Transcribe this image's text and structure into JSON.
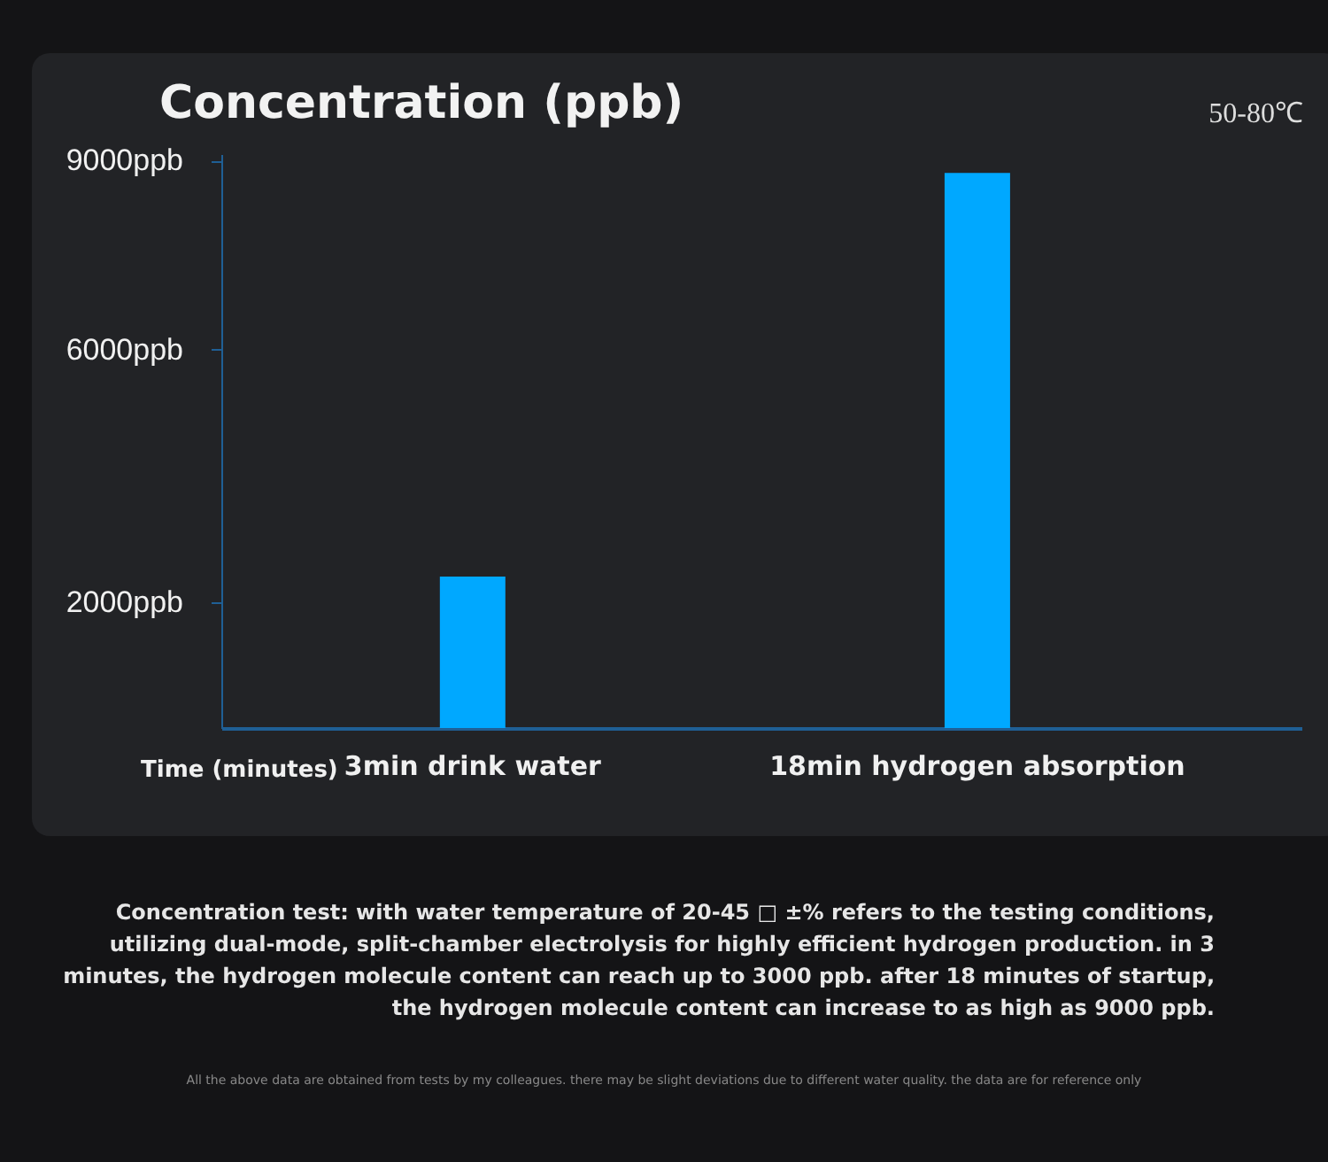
{
  "chart_data": {
    "type": "bar",
    "title": "Concentration (ppb)",
    "xlabel": "Time (minutes)",
    "categories": [
      "3min drink water",
      "18min hydrogen absorption"
    ],
    "values": [
      2400,
      8800
    ],
    "color": "#00a8ff",
    "ylim": [
      0,
      9100
    ],
    "yticks": [
      {
        "value": 2000,
        "label": "2000ppb"
      },
      {
        "value": 6000,
        "label": "6000ppb"
      },
      {
        "value": 9000,
        "label": "9000ppb"
      }
    ],
    "grid": false,
    "annotations": [
      "50-80℃",
      "Concentration test: with water temperature of 20-45 □ ±% refers to the testing conditions, utilizing dual-mode, split-chamber electrolysis for highly efficient hydrogen production. in 3 minutes, the hydrogen molecule content can reach up to 3000 ppb. after 18 minutes of startup, the hydrogen molecule content can increase to as high as 9000 ppb.",
      "All the above data are obtained from tests by my colleagues. there may be slight deviations due to different water quality. the data are for reference only"
    ]
  }
}
